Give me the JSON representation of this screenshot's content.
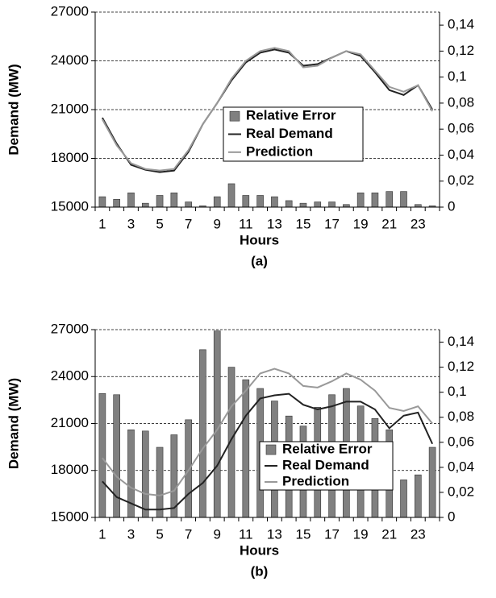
{
  "chart_data": [
    {
      "type": "combo",
      "caption": "(a)",
      "x_label": "Hours",
      "y_label": "Demand (MW)",
      "categories": [
        "1",
        null,
        "3",
        null,
        "5",
        null,
        "7",
        null,
        "9",
        null,
        "11",
        null,
        "13",
        null,
        "15",
        null,
        "17",
        null,
        "19",
        null,
        "21",
        null,
        "23",
        null
      ],
      "ylim": [
        15000,
        27000
      ],
      "yticks": [
        15000,
        18000,
        21000,
        24000,
        27000
      ],
      "y2lim": [
        0,
        0.15
      ],
      "y2ticks": [
        0,
        {
          "value": 0.02,
          "label": "0,02"
        },
        {
          "value": 0.04,
          "label": "0,04"
        },
        {
          "value": 0.06,
          "label": "0,06"
        },
        {
          "value": 0.08,
          "label": "0,08"
        },
        {
          "value": 0.1,
          "label": "0,1"
        },
        {
          "value": 0.12,
          "label": "0,12"
        },
        {
          "value": 0.14,
          "label": "0,14"
        }
      ],
      "grid": true,
      "series": [
        {
          "name": "Relative Error",
          "type": "bar",
          "axis": "y2",
          "color": "#808080",
          "values": [
            0.008,
            0.006,
            0.011,
            0.003,
            0.009,
            0.011,
            0.004,
            0.001,
            0.008,
            0.018,
            0.009,
            0.009,
            0.008,
            0.005,
            0.003,
            0.004,
            0.004,
            0.002,
            0.011,
            0.011,
            0.012,
            0.012,
            0.002,
            0.001
          ]
        },
        {
          "name": "Real Demand",
          "type": "line",
          "color": "#222222",
          "values": [
            20500,
            18900,
            17600,
            17300,
            17150,
            17250,
            18400,
            20100,
            21400,
            22800,
            23900,
            24500,
            24700,
            24500,
            23700,
            23800,
            24200,
            24600,
            24300,
            23300,
            22200,
            21900,
            22500,
            21000
          ]
        },
        {
          "name": "Prediction",
          "type": "line",
          "color": "#999999",
          "values": [
            20400,
            18800,
            17700,
            17350,
            17250,
            17350,
            18500,
            20100,
            21400,
            22900,
            24000,
            24600,
            24800,
            24600,
            23600,
            23700,
            24200,
            24600,
            24400,
            23400,
            22400,
            22100,
            22500,
            20900
          ]
        }
      ]
    },
    {
      "type": "combo",
      "caption": "(b)",
      "x_label": "Hours",
      "y_label": "Demand (MW)",
      "categories": [
        "1",
        null,
        "3",
        null,
        "5",
        null,
        "7",
        null,
        "9",
        null,
        "11",
        null,
        "13",
        null,
        "15",
        null,
        "17",
        null,
        "19",
        null,
        "21",
        null,
        "23",
        null
      ],
      "ylim": [
        15000,
        27000
      ],
      "yticks": [
        15000,
        18000,
        21000,
        24000,
        27000
      ],
      "y2lim": [
        0,
        0.15
      ],
      "y2ticks": [
        0,
        {
          "value": 0.02,
          "label": "0,02"
        },
        {
          "value": 0.04,
          "label": "0,04"
        },
        {
          "value": 0.06,
          "label": "0,06"
        },
        {
          "value": 0.08,
          "label": "0,08"
        },
        {
          "value": 0.1,
          "label": "0,1"
        },
        {
          "value": 0.12,
          "label": "0,12"
        },
        {
          "value": 0.14,
          "label": "0,14"
        }
      ],
      "grid": true,
      "series": [
        {
          "name": "Relative Error",
          "type": "bar",
          "axis": "y2",
          "color": "#808080",
          "values": [
            0.099,
            0.098,
            0.07,
            0.069,
            0.056,
            0.066,
            0.078,
            0.134,
            0.149,
            0.12,
            0.11,
            0.103,
            0.093,
            0.081,
            0.073,
            0.088,
            0.098,
            0.103,
            0.089,
            0.079,
            0.07,
            0.03,
            0.034,
            0.056
          ]
        },
        {
          "name": "Real Demand",
          "type": "line",
          "color": "#222222",
          "values": [
            17300,
            16300,
            15900,
            15500,
            15500,
            15600,
            16500,
            17200,
            18300,
            20000,
            21500,
            22600,
            22800,
            22900,
            22200,
            21900,
            22100,
            22400,
            22400,
            21900,
            20700,
            21500,
            21700,
            19700
          ]
        },
        {
          "name": "Prediction",
          "type": "line",
          "color": "#999999",
          "values": [
            18800,
            17600,
            16900,
            16500,
            16400,
            16700,
            18000,
            19400,
            20600,
            22100,
            23100,
            24200,
            24500,
            24200,
            23400,
            23300,
            23700,
            24200,
            23800,
            23100,
            22000,
            21800,
            22100,
            21000
          ]
        }
      ]
    }
  ]
}
